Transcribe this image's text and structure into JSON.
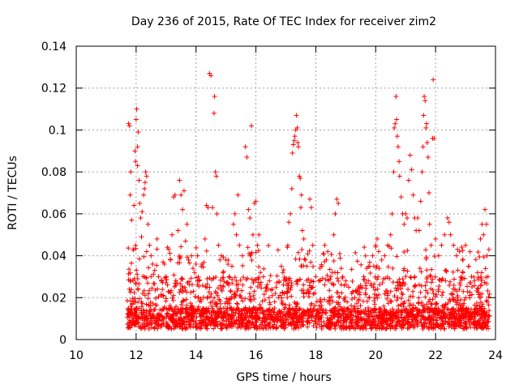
{
  "chart_data": {
    "type": "scatter",
    "title": "Day 236 of 2015, Rate Of TEC Index for receiver zim2",
    "xlabel": "GPS time / hours",
    "ylabel": "ROTI / TECUs",
    "xlim": [
      10,
      24
    ],
    "ylim": [
      0,
      0.14
    ],
    "x_ticks": [
      10,
      12,
      14,
      16,
      18,
      20,
      22,
      24
    ],
    "y_ticks": [
      0,
      0.02,
      0.04,
      0.06,
      0.08,
      0.1,
      0.12,
      0.14
    ],
    "x_tick_labels": [
      "10",
      "12",
      "14",
      "16",
      "18",
      "20",
      "22",
      "24"
    ],
    "y_tick_labels": [
      "0",
      "0.02",
      "0.04",
      "0.06",
      "0.08",
      "0.1",
      "0.12",
      "0.14"
    ],
    "grid": true,
    "marker": "+",
    "marker_color": "#ff0000",
    "points": [
      [
        11.75,
        0.103
      ],
      [
        11.78,
        0.102
      ],
      [
        11.8,
        0.069
      ],
      [
        11.82,
        0.08
      ],
      [
        11.85,
        0.057
      ],
      [
        11.9,
        0.043
      ],
      [
        11.93,
        0.064
      ],
      [
        11.96,
        0.09
      ],
      [
        11.98,
        0.085
      ],
      [
        12.0,
        0.105
      ],
      [
        12.02,
        0.11
      ],
      [
        12.05,
        0.092
      ],
      [
        12.07,
        0.099
      ],
      [
        12.05,
        0.083
      ],
      [
        12.1,
        0.076
      ],
      [
        12.12,
        0.065
      ],
      [
        12.15,
        0.058
      ],
      [
        12.18,
        0.049
      ],
      [
        12.2,
        0.061
      ],
      [
        12.25,
        0.069
      ],
      [
        12.28,
        0.072
      ],
      [
        12.3,
        0.075
      ],
      [
        12.32,
        0.08
      ],
      [
        12.35,
        0.078
      ],
      [
        12.4,
        0.055
      ],
      [
        12.45,
        0.045
      ],
      [
        12.5,
        0.04
      ],
      [
        12.55,
        0.036
      ],
      [
        12.62,
        0.033
      ],
      [
        12.7,
        0.048
      ],
      [
        12.75,
        0.03
      ],
      [
        12.85,
        0.028
      ],
      [
        12.9,
        0.037
      ],
      [
        13.0,
        0.03
      ],
      [
        13.05,
        0.044
      ],
      [
        13.15,
        0.038
      ],
      [
        13.2,
        0.05
      ],
      [
        13.25,
        0.068
      ],
      [
        13.3,
        0.069
      ],
      [
        13.4,
        0.052
      ],
      [
        13.45,
        0.076
      ],
      [
        13.5,
        0.069
      ],
      [
        13.55,
        0.062
      ],
      [
        13.6,
        0.071
      ],
      [
        13.65,
        0.047
      ],
      [
        13.7,
        0.055
      ],
      [
        13.75,
        0.038
      ],
      [
        13.85,
        0.04
      ],
      [
        13.9,
        0.034
      ],
      [
        13.95,
        0.032
      ],
      [
        14.0,
        0.036
      ],
      [
        14.05,
        0.04
      ],
      [
        14.1,
        0.028
      ],
      [
        14.2,
        0.036
      ],
      [
        14.3,
        0.048
      ],
      [
        14.35,
        0.064
      ],
      [
        14.4,
        0.063
      ],
      [
        14.45,
        0.127
      ],
      [
        14.5,
        0.126
      ],
      [
        14.55,
        0.063
      ],
      [
        14.6,
        0.108
      ],
      [
        14.62,
        0.116
      ],
      [
        14.65,
        0.08
      ],
      [
        14.68,
        0.078
      ],
      [
        14.7,
        0.06
      ],
      [
        14.75,
        0.045
      ],
      [
        14.8,
        0.038
      ],
      [
        14.85,
        0.04
      ],
      [
        14.9,
        0.032
      ],
      [
        15.0,
        0.038
      ],
      [
        15.1,
        0.03
      ],
      [
        15.2,
        0.035
      ],
      [
        15.25,
        0.055
      ],
      [
        15.3,
        0.06
      ],
      [
        15.35,
        0.05
      ],
      [
        15.4,
        0.069
      ],
      [
        15.45,
        0.045
      ],
      [
        15.55,
        0.04
      ],
      [
        15.65,
        0.092
      ],
      [
        15.7,
        0.087
      ],
      [
        15.75,
        0.062
      ],
      [
        15.8,
        0.058
      ],
      [
        15.85,
        0.102
      ],
      [
        15.9,
        0.05
      ],
      [
        15.95,
        0.065
      ],
      [
        16.0,
        0.066
      ],
      [
        16.05,
        0.045
      ],
      [
        16.1,
        0.05
      ],
      [
        16.15,
        0.032
      ],
      [
        16.25,
        0.03
      ],
      [
        16.35,
        0.025
      ],
      [
        16.45,
        0.028
      ],
      [
        16.55,
        0.021
      ],
      [
        16.65,
        0.022
      ],
      [
        16.75,
        0.02
      ],
      [
        16.85,
        0.035
      ],
      [
        16.9,
        0.032
      ],
      [
        17.0,
        0.028
      ],
      [
        17.05,
        0.044
      ],
      [
        17.1,
        0.056
      ],
      [
        17.15,
        0.06
      ],
      [
        17.2,
        0.072
      ],
      [
        17.22,
        0.089
      ],
      [
        17.25,
        0.093
      ],
      [
        17.28,
        0.095
      ],
      [
        17.3,
        0.097
      ],
      [
        17.33,
        0.1
      ],
      [
        17.35,
        0.107
      ],
      [
        17.38,
        0.101
      ],
      [
        17.4,
        0.094
      ],
      [
        17.42,
        0.092
      ],
      [
        17.45,
        0.078
      ],
      [
        17.48,
        0.077
      ],
      [
        17.5,
        0.063
      ],
      [
        17.52,
        0.069
      ],
      [
        17.55,
        0.052
      ],
      [
        17.6,
        0.048
      ],
      [
        17.65,
        0.038
      ],
      [
        17.7,
        0.035
      ],
      [
        17.8,
        0.067
      ],
      [
        17.85,
        0.063
      ],
      [
        17.9,
        0.045
      ],
      [
        18.0,
        0.03
      ],
      [
        18.1,
        0.028
      ],
      [
        18.2,
        0.035
      ],
      [
        18.25,
        0.041
      ],
      [
        18.3,
        0.045
      ],
      [
        18.35,
        0.038
      ],
      [
        18.4,
        0.042
      ],
      [
        18.5,
        0.03
      ],
      [
        18.55,
        0.032
      ],
      [
        18.6,
        0.05
      ],
      [
        18.65,
        0.06
      ],
      [
        18.7,
        0.067
      ],
      [
        18.75,
        0.065
      ],
      [
        18.8,
        0.041
      ],
      [
        18.85,
        0.034
      ],
      [
        18.9,
        0.03
      ],
      [
        19.0,
        0.028
      ],
      [
        19.1,
        0.025
      ],
      [
        19.2,
        0.022
      ],
      [
        19.3,
        0.02
      ],
      [
        19.4,
        0.022
      ],
      [
        19.5,
        0.025
      ],
      [
        19.6,
        0.03
      ],
      [
        19.7,
        0.034
      ],
      [
        19.8,
        0.035
      ],
      [
        19.9,
        0.04
      ],
      [
        20.0,
        0.045
      ],
      [
        20.05,
        0.048
      ],
      [
        20.1,
        0.042
      ],
      [
        20.2,
        0.038
      ],
      [
        20.3,
        0.04
      ],
      [
        20.4,
        0.045
      ],
      [
        20.5,
        0.05
      ],
      [
        20.55,
        0.06
      ],
      [
        20.6,
        0.08
      ],
      [
        20.62,
        0.101
      ],
      [
        20.65,
        0.103
      ],
      [
        20.68,
        0.116
      ],
      [
        20.7,
        0.105
      ],
      [
        20.72,
        0.097
      ],
      [
        20.75,
        0.092
      ],
      [
        20.78,
        0.085
      ],
      [
        20.8,
        0.078
      ],
      [
        20.85,
        0.068
      ],
      [
        20.9,
        0.06
      ],
      [
        20.95,
        0.055
      ],
      [
        21.0,
        0.06
      ],
      [
        21.05,
        0.058
      ],
      [
        21.1,
        0.076
      ],
      [
        21.15,
        0.088
      ],
      [
        21.2,
        0.081
      ],
      [
        21.25,
        0.069
      ],
      [
        21.3,
        0.058
      ],
      [
        21.35,
        0.052
      ],
      [
        21.4,
        0.058
      ],
      [
        21.45,
        0.052
      ],
      [
        21.5,
        0.066
      ],
      [
        21.55,
        0.08
      ],
      [
        21.58,
        0.092
      ],
      [
        21.6,
        0.107
      ],
      [
        21.62,
        0.116
      ],
      [
        21.65,
        0.114
      ],
      [
        21.68,
        0.101
      ],
      [
        21.7,
        0.103
      ],
      [
        21.72,
        0.094
      ],
      [
        21.75,
        0.087
      ],
      [
        21.78,
        0.07
      ],
      [
        21.8,
        0.055
      ],
      [
        21.85,
        0.045
      ],
      [
        21.9,
        0.096
      ],
      [
        21.92,
        0.124
      ],
      [
        21.95,
        0.096
      ],
      [
        22.0,
        0.048
      ],
      [
        22.1,
        0.04
      ],
      [
        22.2,
        0.045
      ],
      [
        22.3,
        0.05
      ],
      [
        22.4,
        0.058
      ],
      [
        22.45,
        0.056
      ],
      [
        22.5,
        0.05
      ],
      [
        22.6,
        0.045
      ],
      [
        22.7,
        0.04
      ],
      [
        22.8,
        0.042
      ],
      [
        22.9,
        0.038
      ],
      [
        23.0,
        0.045
      ],
      [
        23.1,
        0.035
      ],
      [
        23.2,
        0.03
      ],
      [
        23.3,
        0.028
      ],
      [
        23.4,
        0.032
      ],
      [
        23.5,
        0.048
      ],
      [
        23.55,
        0.055
      ],
      [
        23.6,
        0.05
      ],
      [
        23.65,
        0.062
      ],
      [
        23.7,
        0.055
      ],
      [
        23.72,
        0.04
      ],
      [
        23.75,
        0.03
      ]
    ],
    "dense_band": {
      "description_x_range": [
        11.7,
        23.8
      ],
      "typical_range": [
        0.005,
        0.03
      ]
    }
  }
}
